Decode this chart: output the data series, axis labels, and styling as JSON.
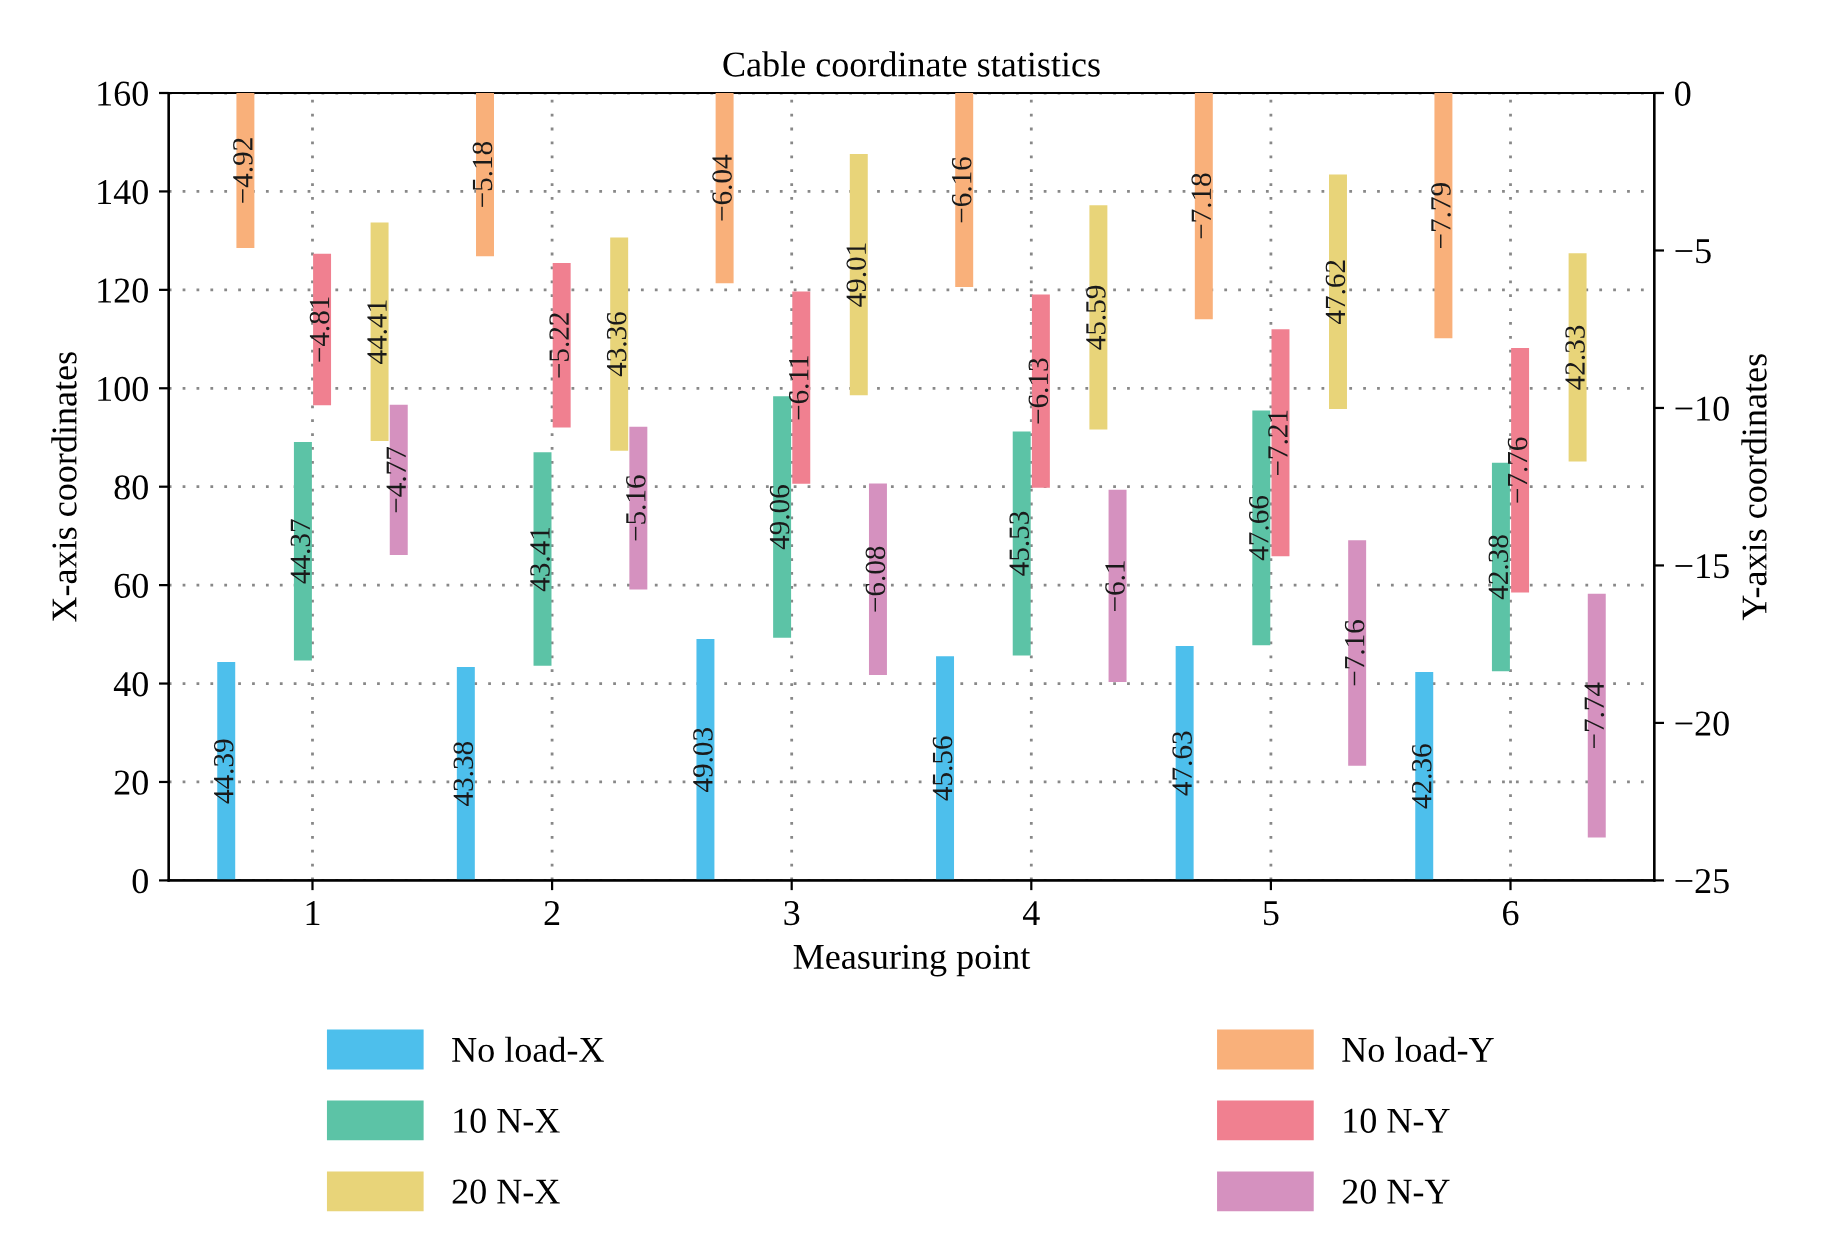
{
  "chart_data": {
    "type": "bar",
    "title": "Cable coordinate statistics",
    "xlabel": "Measuring point",
    "ylabel": "X-axis coordinates",
    "y2label": "Y-axis coordinates",
    "categories": [
      "1",
      "2",
      "3",
      "4",
      "5",
      "6"
    ],
    "series": [
      {
        "name": "No load-X",
        "color": "#4dbfec",
        "base": [
          0,
          0,
          0,
          0,
          0,
          0
        ],
        "values": [
          44.39,
          43.38,
          49.03,
          45.56,
          47.63,
          42.36
        ]
      },
      {
        "name": "10 N-X",
        "color": "#5cc3a6",
        "base": [
          44.7,
          43.6,
          49.3,
          45.7,
          47.8,
          42.5
        ],
        "values": [
          44.37,
          43.41,
          49.06,
          45.53,
          47.66,
          42.38
        ]
      },
      {
        "name": "20 N-X",
        "color": "#e8d479",
        "base": [
          89.3,
          87.3,
          98.6,
          91.6,
          95.8,
          85.1
        ],
        "values": [
          44.41,
          43.36,
          49.01,
          45.59,
          47.62,
          42.33
        ]
      },
      {
        "name": "No load-Y",
        "color": "#f9b07a",
        "axis": "y2",
        "base": [
          0,
          0,
          0,
          0,
          0,
          0
        ],
        "values": [
          -4.92,
          -5.18,
          -6.04,
          -6.16,
          -7.18,
          -7.79
        ]
      },
      {
        "name": "10 N-Y",
        "color": "#f08090",
        "axis": "y2",
        "base": [
          -5.1,
          -5.4,
          -6.3,
          -6.4,
          -7.5,
          -8.1
        ],
        "values": [
          -4.81,
          -5.22,
          -6.11,
          -6.13,
          -7.21,
          -7.76
        ]
      },
      {
        "name": "20 N-Y",
        "color": "#d591bf",
        "axis": "y2",
        "base": [
          -9.9,
          -10.6,
          -12.4,
          -12.6,
          -14.2,
          -15.9
        ],
        "values": [
          -4.77,
          -5.16,
          -6.08,
          -6.1,
          -7.16,
          -7.74
        ]
      }
    ],
    "ylim": [
      0,
      160
    ],
    "yticks": [
      0,
      20,
      40,
      60,
      80,
      100,
      120,
      140,
      160
    ],
    "y2lim": [
      -25,
      0
    ],
    "y2ticks": [
      -25,
      -20,
      -15,
      -10,
      -5,
      0
    ],
    "data_labels": true,
    "grid": true,
    "legend": "bottom"
  }
}
